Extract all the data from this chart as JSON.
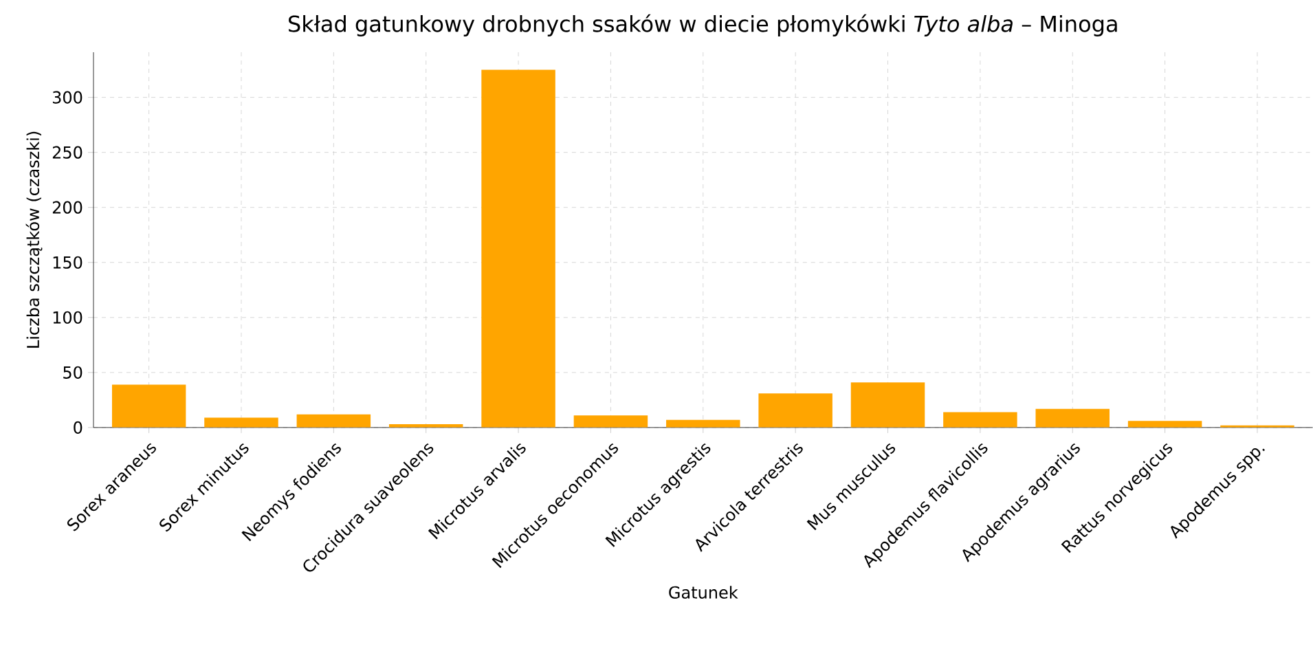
{
  "chart_data": {
    "type": "bar",
    "title": "Skład gatunkowy drobnych ssaków w diecie płomykówki *Tyto alba* – Minoga",
    "xlabel": "Gatunek",
    "ylabel": "Liczba szczątków (czaszki)",
    "categories": [
      "Sorex araneus",
      "Sorex minutus",
      "Neomys fodiens",
      "Crocidura suaveolens",
      "Microtus arvalis",
      "Microtus oeconomus",
      "Microtus agrestis",
      "Arvicola terrestris",
      "Mus musculus",
      "Apodemus flavicollis",
      "Apodemus agrarius",
      "Rattus norvegicus",
      "Apodemus spp."
    ],
    "values": [
      39,
      9,
      12,
      3,
      325,
      11,
      7,
      31,
      41,
      14,
      17,
      6,
      2
    ],
    "color": "#ffa500",
    "ylim": [
      0,
      341
    ],
    "yticks": [
      0,
      50,
      100,
      150,
      200,
      250,
      300
    ],
    "grid": true
  }
}
